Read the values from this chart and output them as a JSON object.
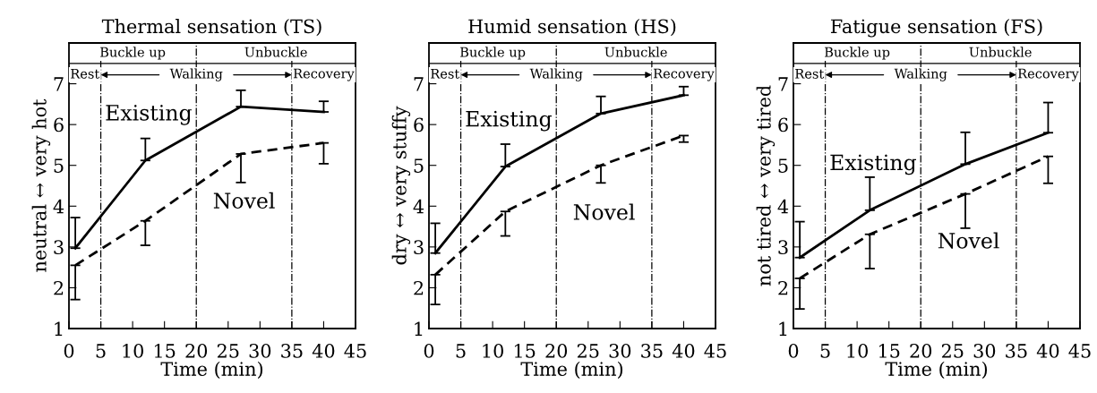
{
  "chart_data": [
    {
      "type": "line",
      "title": "Thermal sensation (TS)",
      "xlabel": "Time (min)",
      "ylabel": "neutral ↔ very hot",
      "xlim": [
        0,
        45
      ],
      "xticks": [
        0,
        5,
        10,
        15,
        20,
        25,
        30,
        35,
        40,
        45
      ],
      "ylim": [
        1,
        8
      ],
      "yticks": [
        1,
        2,
        3,
        4,
        5,
        6,
        7
      ],
      "grid": false,
      "legend": false,
      "series": [
        {
          "name": "Existing",
          "x": [
            1,
            12,
            27,
            40
          ],
          "values": [
            2.97,
            5.12,
            6.44,
            6.31
          ],
          "color": "#000000",
          "line_style": "solid",
          "errors": [
            [
              2.97,
              3.72
            ],
            [
              5.12,
              5.66
            ],
            [
              6.44,
              6.84
            ],
            [
              6.31,
              6.57
            ]
          ]
        },
        {
          "name": "Novel",
          "x": [
            1,
            12,
            27,
            40
          ],
          "values": [
            2.55,
            3.64,
            5.28,
            5.55
          ],
          "color": "#000000",
          "line_style": "dashed",
          "errors": [
            [
              1.71,
              2.55
            ],
            [
              3.04,
              3.64
            ],
            [
              4.58,
              5.28
            ],
            [
              5.04,
              5.55
            ]
          ]
        }
      ],
      "ref_lines": [
        {
          "axis": "x",
          "value": 5,
          "line_style": "dashdot",
          "color": "#000000"
        },
        {
          "axis": "x",
          "value": 20,
          "line_style": "dashdot",
          "color": "#000000"
        },
        {
          "axis": "x",
          "value": 35,
          "line_style": "dashdot",
          "color": "#000000"
        },
        {
          "axis": "y",
          "value": 7.5,
          "line_style": "solid",
          "color": "#000000"
        }
      ],
      "annotations": [
        "Buckle up",
        "Unbuckle",
        "Rest",
        "Walking",
        "Recovery"
      ]
    },
    {
      "type": "line",
      "title": "Humid sensation (HS)",
      "xlabel": "Time (min)",
      "ylabel": "dry ↔ very stuffy",
      "xlim": [
        0,
        45
      ],
      "xticks": [
        0,
        5,
        10,
        15,
        20,
        25,
        30,
        35,
        40,
        45
      ],
      "ylim": [
        1,
        8
      ],
      "yticks": [
        1,
        2,
        3,
        4,
        5,
        6,
        7
      ],
      "grid": false,
      "legend": false,
      "series": [
        {
          "name": "Existing",
          "x": [
            1,
            12,
            27,
            40
          ],
          "values": [
            2.85,
            4.97,
            6.27,
            6.72
          ],
          "color": "#000000",
          "line_style": "solid",
          "errors": [
            [
              2.85,
              3.58
            ],
            [
              4.97,
              5.52
            ],
            [
              6.27,
              6.69
            ],
            [
              6.72,
              6.93
            ]
          ]
        },
        {
          "name": "Novel",
          "x": [
            1,
            12,
            27,
            40
          ],
          "values": [
            2.32,
            3.87,
            5.0,
            5.73
          ],
          "color": "#000000",
          "line_style": "dashed",
          "errors": [
            [
              1.59,
              2.32
            ],
            [
              3.27,
              3.87
            ],
            [
              4.57,
              5.0
            ],
            [
              5.57,
              5.73
            ]
          ]
        }
      ],
      "ref_lines": [
        {
          "axis": "x",
          "value": 5,
          "line_style": "dashdot",
          "color": "#000000"
        },
        {
          "axis": "x",
          "value": 20,
          "line_style": "dashdot",
          "color": "#000000"
        },
        {
          "axis": "x",
          "value": 35,
          "line_style": "dashdot",
          "color": "#000000"
        },
        {
          "axis": "y",
          "value": 7.5,
          "line_style": "solid",
          "color": "#000000"
        }
      ],
      "annotations": [
        "Buckle up",
        "Unbuckle",
        "Rest",
        "Walking",
        "Recovery"
      ]
    },
    {
      "type": "line",
      "title": "Fatigue sensation (FS)",
      "xlabel": "Time (min)",
      "ylabel": "not tired ↔ very tired",
      "xlim": [
        0,
        45
      ],
      "xticks": [
        0,
        5,
        10,
        15,
        20,
        25,
        30,
        35,
        40,
        45
      ],
      "ylim": [
        1,
        8
      ],
      "yticks": [
        1,
        2,
        3,
        4,
        5,
        6,
        7
      ],
      "grid": false,
      "legend": false,
      "series": [
        {
          "name": "Existing",
          "x": [
            1,
            12,
            27,
            40
          ],
          "values": [
            2.74,
            3.9,
            5.03,
            5.8
          ],
          "color": "#000000",
          "line_style": "solid",
          "errors": [
            [
              2.74,
              3.62
            ],
            [
              3.9,
              4.71
            ],
            [
              5.03,
              5.81
            ],
            [
              5.8,
              6.54
            ]
          ]
        },
        {
          "name": "Novel",
          "x": [
            1,
            12,
            27,
            40
          ],
          "values": [
            2.23,
            3.31,
            4.3,
            5.22
          ],
          "color": "#000000",
          "line_style": "dashed",
          "errors": [
            [
              1.48,
              2.23
            ],
            [
              2.47,
              3.31
            ],
            [
              3.46,
              4.3
            ],
            [
              4.56,
              5.22
            ]
          ]
        }
      ],
      "ref_lines": [
        {
          "axis": "x",
          "value": 5,
          "line_style": "dashdot",
          "color": "#000000"
        },
        {
          "axis": "x",
          "value": 20,
          "line_style": "dashdot",
          "color": "#000000"
        },
        {
          "axis": "x",
          "value": 35,
          "line_style": "dashdot",
          "color": "#000000"
        },
        {
          "axis": "y",
          "value": 7.5,
          "line_style": "solid",
          "color": "#000000"
        }
      ],
      "annotations": [
        "Buckle up",
        "Unbuckle",
        "Rest",
        "Walking",
        "Recovery"
      ]
    }
  ]
}
